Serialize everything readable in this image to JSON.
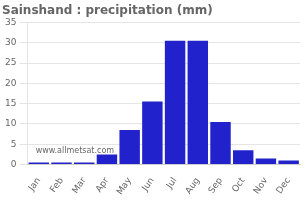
{
  "chart_data": {
    "type": "bar",
    "title": "Sainshand : precipitation (mm)",
    "categories": [
      "Jan",
      "Feb",
      "Mar",
      "Apr",
      "May",
      "Jun",
      "Jul",
      "Aug",
      "Sep",
      "Oct",
      "Nov",
      "Dec"
    ],
    "values": [
      0.5,
      0.5,
      0.5,
      2.5,
      8.5,
      15.5,
      30.5,
      30.5,
      10.5,
      3.5,
      1.5,
      1.0
    ],
    "color": "#2222cc",
    "ylim": [
      0,
      35
    ],
    "yticks": [
      0,
      5,
      10,
      15,
      20,
      25,
      30,
      35
    ],
    "grid": true,
    "annotations": [
      "www.allmetsat.com"
    ]
  }
}
